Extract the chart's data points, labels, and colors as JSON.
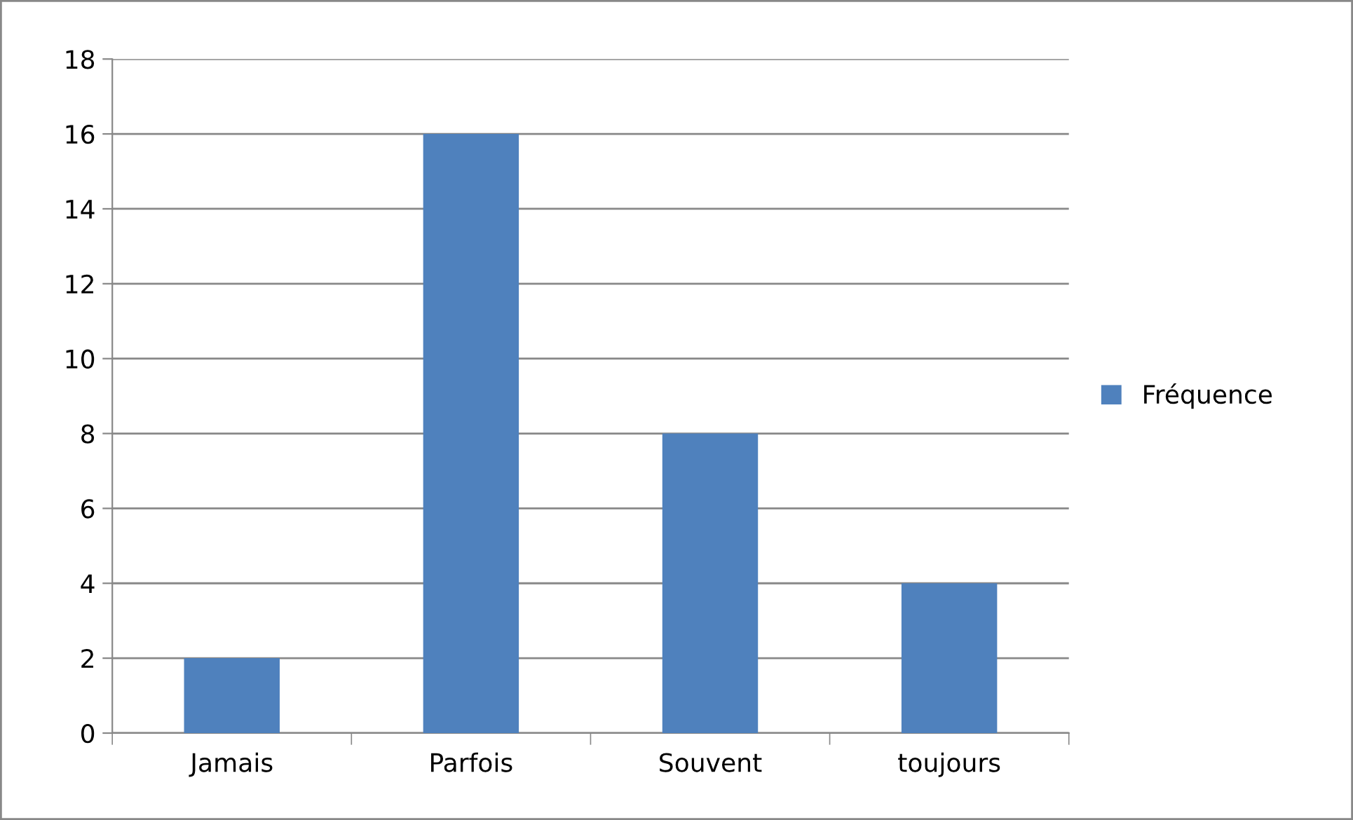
{
  "chart_data": {
    "type": "bar",
    "categories": [
      "Jamais",
      "Parfois",
      "Souvent",
      "toujours"
    ],
    "series": [
      {
        "name": "Fréquence",
        "color": "#4f81bd",
        "values": [
          2,
          16,
          8,
          4
        ]
      }
    ],
    "ylim": [
      0,
      18
    ],
    "yticks": [
      0,
      2,
      4,
      6,
      8,
      10,
      12,
      14,
      16,
      18
    ],
    "grid": "y",
    "legend": "right"
  }
}
